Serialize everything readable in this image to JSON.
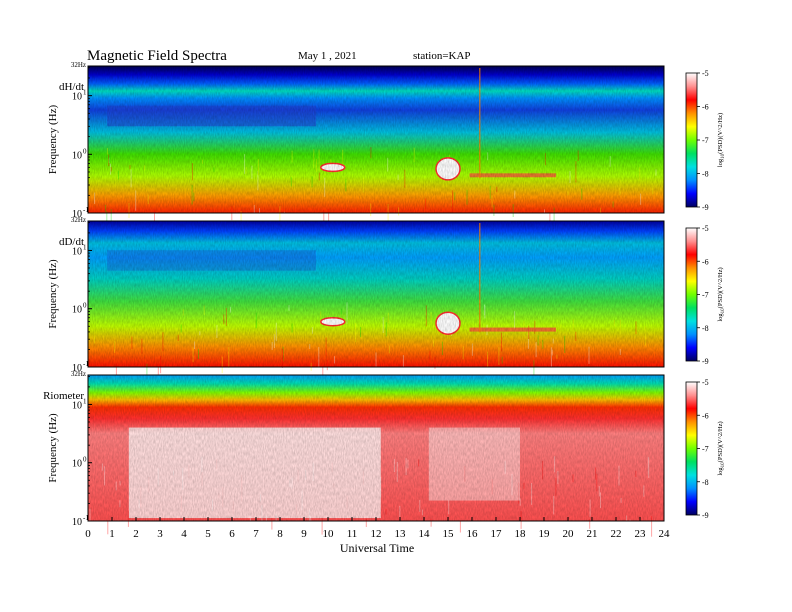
{
  "title": "Magnetic  Field  Spectra",
  "date_text": "May 1  , 2021",
  "station_text": "station=KAP",
  "colorbar_colors": [
    "#000060",
    "#0000ff",
    "#0090ff",
    "#00e0e0",
    "#00e060",
    "#70ff00",
    "#ffff00",
    "#ff9000",
    "#ff0000",
    "#ff9090",
    "#ffffff"
  ],
  "chart_data": [
    {
      "type": "heatmap",
      "panel_label": "dH/dt",
      "top_label": "32Hz",
      "ylabel": "Frequency  (Hz)",
      "y_ticks": [
        {
          "label": "10",
          "exp": "1",
          "value": 10
        },
        {
          "label": "10",
          "exp": "0",
          "value": 1
        },
        {
          "label": "10",
          "exp": "-1",
          "value": 0.1
        }
      ],
      "ylim": [
        0.1,
        32
      ],
      "y_scale": "log",
      "xlim": [
        0,
        24
      ],
      "colorbar": {
        "min": -9,
        "max": -5,
        "ticks": [
          "-5",
          "-6",
          "-7",
          "-8",
          "-9"
        ],
        "label_prefix": "log",
        "label_sub": "10",
        "label_rest": "(PSD)(V^2/Hz)"
      }
    },
    {
      "type": "heatmap",
      "panel_label": "dD/dt",
      "top_label": "32Hz",
      "ylabel": "Frequency  (Hz)",
      "y_ticks": [
        {
          "label": "10",
          "exp": "1",
          "value": 10
        },
        {
          "label": "10",
          "exp": "0",
          "value": 1
        },
        {
          "label": "10",
          "exp": "-1",
          "value": 0.1
        }
      ],
      "ylim": [
        0.1,
        32
      ],
      "y_scale": "log",
      "xlim": [
        0,
        24
      ],
      "colorbar": {
        "min": -9,
        "max": -5,
        "ticks": [
          "-5",
          "-6",
          "-7",
          "-8",
          "-9"
        ],
        "label_prefix": "log",
        "label_sub": "10",
        "label_rest": "(PSD)(V^2/Hz)"
      }
    },
    {
      "type": "heatmap",
      "panel_label": "Riometer",
      "top_label": "32Hz",
      "ylabel": "Frequency  (Hz)",
      "y_ticks": [
        {
          "label": "10",
          "exp": "1",
          "value": 10
        },
        {
          "label": "10",
          "exp": "0",
          "value": 1
        },
        {
          "label": "10",
          "exp": "-1",
          "value": 0.1
        }
      ],
      "ylim": [
        0.1,
        32
      ],
      "y_scale": "log",
      "xlim": [
        0,
        24
      ],
      "x_ticks": [
        "0",
        "1",
        "2",
        "3",
        "4",
        "5",
        "6",
        "7",
        "8",
        "9",
        "10",
        "11",
        "12",
        "13",
        "14",
        "15",
        "16",
        "17",
        "18",
        "19",
        "20",
        "21",
        "22",
        "23",
        "24"
      ],
      "xlabel": "Universal Time",
      "colorbar": {
        "min": -9,
        "max": -5,
        "ticks": [
          "-5",
          "-6",
          "-7",
          "-8",
          "-9"
        ],
        "label_prefix": "log",
        "label_sub": "10",
        "label_rest": "(PSD)(V^2/Hz)"
      }
    }
  ]
}
